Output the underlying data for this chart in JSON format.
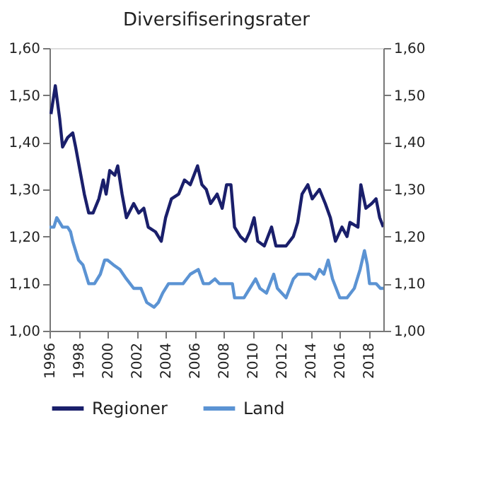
{
  "chart_data": {
    "type": "line",
    "title": "Diversifiseringsrater",
    "xlim": [
      1996,
      2019
    ],
    "xticks": [
      1996,
      1998,
      2000,
      2002,
      2004,
      2006,
      2008,
      2010,
      2012,
      2014,
      2016,
      2018
    ],
    "ylim": [
      1.0,
      1.6
    ],
    "yticks": [
      {
        "value": 1.0,
        "label": "1,00"
      },
      {
        "value": 1.1,
        "label": "1,10"
      },
      {
        "value": 1.2,
        "label": "1,20"
      },
      {
        "value": 1.3,
        "label": "1,30"
      },
      {
        "value": 1.4,
        "label": "1,40"
      },
      {
        "value": 1.5,
        "label": "1,50"
      },
      {
        "value": 1.6,
        "label": "1,60"
      }
    ],
    "y2lim": [
      1.0,
      1.6
    ],
    "y2ticks": [
      {
        "value": 1.0,
        "label": "1,00"
      },
      {
        "value": 1.1,
        "label": "1,10"
      },
      {
        "value": 1.2,
        "label": "1,20"
      },
      {
        "value": 1.3,
        "label": "1,30"
      },
      {
        "value": 1.4,
        "label": "1,40"
      },
      {
        "value": 1.5,
        "label": "1,50"
      },
      {
        "value": 1.6,
        "label": "1,60"
      }
    ],
    "grid": false,
    "legend": "bottom",
    "marker": "none",
    "line_style": "solid",
    "series": [
      {
        "name": "Regioner",
        "color": "#1a1f6b",
        "x": [
          1996.1,
          1996.4,
          1996.7,
          1996.9,
          1997.25,
          1997.6,
          1997.8,
          1998.1,
          1998.4,
          1998.7,
          1999.0,
          1999.4,
          1999.7,
          1999.9,
          2000.15,
          2000.5,
          2000.7,
          2001.0,
          2001.3,
          2001.8,
          2002.15,
          2002.5,
          2002.8,
          2003.3,
          2003.7,
          2004.0,
          2004.4,
          2004.9,
          2005.3,
          2005.7,
          2006.2,
          2006.5,
          2006.8,
          2007.1,
          2007.55,
          2007.9,
          2008.2,
          2008.5,
          2008.75,
          2009.15,
          2009.5,
          2009.8,
          2010.1,
          2010.35,
          2010.8,
          2011.3,
          2011.6,
          2012.3,
          2012.8,
          2013.1,
          2013.4,
          2013.8,
          2014.1,
          2014.6,
          2015.0,
          2015.35,
          2015.7,
          2016.15,
          2016.5,
          2016.7,
          2017.25,
          2017.45,
          2017.8,
          2018.2,
          2018.5,
          2018.75,
          2019.0
        ],
        "values": [
          1.46,
          1.52,
          1.45,
          1.39,
          1.41,
          1.42,
          1.39,
          1.34,
          1.29,
          1.25,
          1.25,
          1.28,
          1.32,
          1.29,
          1.34,
          1.33,
          1.35,
          1.29,
          1.24,
          1.27,
          1.25,
          1.26,
          1.22,
          1.21,
          1.19,
          1.24,
          1.28,
          1.29,
          1.32,
          1.31,
          1.35,
          1.31,
          1.3,
          1.27,
          1.29,
          1.26,
          1.31,
          1.31,
          1.22,
          1.2,
          1.19,
          1.21,
          1.24,
          1.19,
          1.18,
          1.22,
          1.18,
          1.18,
          1.2,
          1.23,
          1.29,
          1.31,
          1.28,
          1.3,
          1.27,
          1.24,
          1.19,
          1.22,
          1.2,
          1.23,
          1.22,
          1.31,
          1.26,
          1.27,
          1.28,
          1.24,
          1.22
        ]
      },
      {
        "name": "Land",
        "color": "#5b93d3",
        "x": [
          1996.0,
          1996.3,
          1996.5,
          1996.9,
          1997.25,
          1997.45,
          1997.6,
          1998.0,
          1998.3,
          1998.7,
          1999.1,
          1999.5,
          1999.8,
          2000.0,
          2000.4,
          2000.85,
          2001.3,
          2001.8,
          2002.3,
          2002.7,
          2003.2,
          2003.5,
          2003.8,
          2004.2,
          2004.7,
          2005.2,
          2005.7,
          2006.25,
          2006.6,
          2007.0,
          2007.4,
          2007.7,
          2008.2,
          2008.6,
          2008.75,
          2009.15,
          2009.4,
          2009.8,
          2010.2,
          2010.5,
          2010.95,
          2011.45,
          2011.7,
          2012.3,
          2012.8,
          2013.1,
          2013.6,
          2013.9,
          2014.3,
          2014.6,
          2014.9,
          2015.2,
          2015.5,
          2016.0,
          2016.5,
          2017.0,
          2017.4,
          2017.7,
          2017.9,
          2018.05,
          2018.5,
          2018.8,
          2019.0
        ],
        "values": [
          1.22,
          1.22,
          1.24,
          1.22,
          1.22,
          1.21,
          1.19,
          1.15,
          1.14,
          1.1,
          1.1,
          1.12,
          1.15,
          1.15,
          1.14,
          1.13,
          1.11,
          1.09,
          1.09,
          1.06,
          1.05,
          1.06,
          1.08,
          1.1,
          1.1,
          1.1,
          1.12,
          1.13,
          1.1,
          1.1,
          1.11,
          1.1,
          1.1,
          1.1,
          1.07,
          1.07,
          1.07,
          1.09,
          1.11,
          1.09,
          1.08,
          1.12,
          1.09,
          1.07,
          1.11,
          1.12,
          1.12,
          1.12,
          1.11,
          1.13,
          1.12,
          1.15,
          1.11,
          1.07,
          1.07,
          1.09,
          1.13,
          1.17,
          1.14,
          1.1,
          1.1,
          1.09,
          1.09
        ]
      }
    ]
  }
}
